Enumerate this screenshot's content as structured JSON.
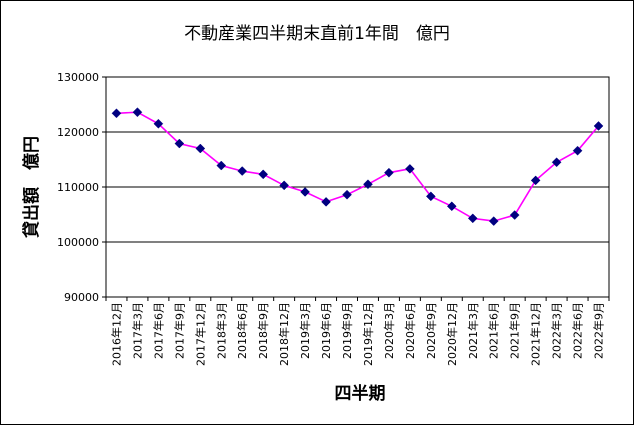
{
  "chart_data": {
    "type": "line",
    "title": "不動産業四半期末直前1年間　億円",
    "xlabel": "四半期",
    "ylabel": "貸出額　億円",
    "ylim": [
      90000,
      130000
    ],
    "yticks": [
      90000,
      100000,
      110000,
      120000,
      130000
    ],
    "ytick_labels": [
      "90000",
      "100000",
      "110000",
      "120000",
      "130000"
    ],
    "grid": true,
    "categories": [
      "2016年12月",
      "2017年3月",
      "2017年6月",
      "2017年9月",
      "2017年12月",
      "2018年3月",
      "2018年6月",
      "2018年9月",
      "2018年12月",
      "2019年3月",
      "2019年6月",
      "2019年9月",
      "2019年12月",
      "2020年3月",
      "2020年6月",
      "2020年9月",
      "2020年12月",
      "2021年3月",
      "2021年6月",
      "2021年9月",
      "2021年12月",
      "2022年3月",
      "2022年6月",
      "2022年9月"
    ],
    "series": [
      {
        "name": "貸出額",
        "color": "#ff00ff",
        "marker_color": "#000080",
        "values": [
          123400,
          123600,
          121500,
          117900,
          117000,
          113900,
          112900,
          112300,
          110300,
          109100,
          107300,
          108600,
          110500,
          112600,
          113300,
          108300,
          106500,
          104300,
          103800,
          104900,
          111200,
          114500,
          116600,
          121100
        ]
      }
    ]
  }
}
